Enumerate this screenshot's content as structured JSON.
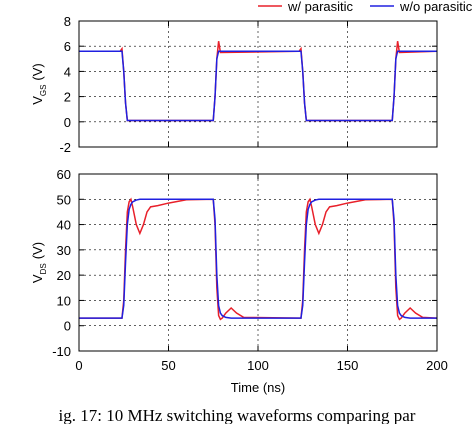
{
  "chart_data": [
    {
      "type": "line",
      "ylabel": {
        "main": "V",
        "sub": "GS",
        "unit": "(V)"
      },
      "x": [
        0,
        23,
        24,
        25,
        26,
        27,
        28,
        74,
        75,
        76,
        77,
        78,
        79,
        123,
        124,
        125,
        126,
        127,
        128,
        174,
        175,
        176,
        177,
        178,
        179,
        200
      ],
      "series": [
        {
          "name": "w/ parasitic",
          "color": "#e8202a",
          "values": [
            5.6,
            5.6,
            5.8,
            4,
            1.5,
            0.1,
            0.1,
            0.1,
            0.1,
            2,
            5,
            6.4,
            5.5,
            5.6,
            5.8,
            4,
            1.5,
            0.1,
            0.1,
            0.1,
            0.1,
            2,
            5,
            6.4,
            5.5,
            5.6
          ]
        },
        {
          "name": "w/o parasitic",
          "color": "#2020e0",
          "values": [
            5.6,
            5.6,
            5.6,
            4,
            1.5,
            0.1,
            0.1,
            0.1,
            0.1,
            2,
            5,
            5.6,
            5.6,
            5.6,
            5.6,
            4,
            1.5,
            0.1,
            0.1,
            0.1,
            0.1,
            2,
            5,
            5.6,
            5.6,
            5.6
          ]
        }
      ],
      "xlim": [
        0,
        200
      ],
      "xticks": [
        0,
        50,
        100,
        150,
        200
      ],
      "show_xtick_labels": false,
      "ylim": [
        -2,
        8
      ],
      "yticks": [
        -2,
        0,
        2,
        4,
        6,
        8
      ],
      "grid": true
    },
    {
      "type": "line",
      "ylabel": {
        "main": "V",
        "sub": "DS",
        "unit": "(V)"
      },
      "xlabel": "Time (ns)",
      "x": [
        0,
        24,
        25,
        26,
        27,
        28,
        29,
        30,
        32,
        34,
        36,
        38,
        40,
        44,
        50,
        60,
        75,
        76,
        77,
        78,
        79,
        80,
        82,
        85,
        88,
        92,
        124,
        125,
        126,
        127,
        128,
        129,
        130,
        132,
        134,
        136,
        138,
        140,
        144,
        150,
        160,
        175,
        176,
        177,
        178,
        179,
        180,
        182,
        185,
        188,
        192,
        200
      ],
      "series": [
        {
          "name": "w/ parasitic",
          "color": "#e8202a",
          "values": [
            3,
            3,
            10,
            30,
            45,
            49,
            50,
            47,
            40,
            36.5,
            40,
            45,
            47,
            47.5,
            48.5,
            49.8,
            50,
            40,
            15,
            4,
            2.5,
            3,
            5,
            7,
            5,
            3.3,
            3,
            10,
            30,
            45,
            49,
            50,
            47,
            40,
            36.5,
            40,
            45,
            47,
            47.5,
            48.5,
            49.8,
            50,
            40,
            15,
            4,
            2.5,
            3,
            5,
            7,
            5,
            3.3,
            3
          ]
        },
        {
          "name": "w/o parasitic",
          "color": "#2020e0",
          "values": [
            3,
            3,
            8,
            25,
            40,
            46,
            48,
            49,
            49.7,
            50,
            50,
            50,
            50,
            50,
            50,
            50,
            50,
            42,
            20,
            8,
            5,
            4,
            3.3,
            3,
            3,
            3,
            3,
            8,
            25,
            40,
            46,
            48,
            49,
            49.7,
            50,
            50,
            50,
            50,
            50,
            50,
            50,
            50,
            42,
            20,
            8,
            5,
            4,
            3.3,
            3,
            3,
            3,
            3
          ]
        }
      ],
      "xlim": [
        0,
        200
      ],
      "xticks": [
        0,
        50,
        100,
        150,
        200
      ],
      "show_xtick_labels": true,
      "ylim": [
        -10,
        60
      ],
      "yticks": [
        -10,
        0,
        10,
        20,
        30,
        40,
        50,
        60
      ],
      "grid": true
    }
  ],
  "caption": "ig. 17: 10 MHz switching waveforms comparing par"
}
